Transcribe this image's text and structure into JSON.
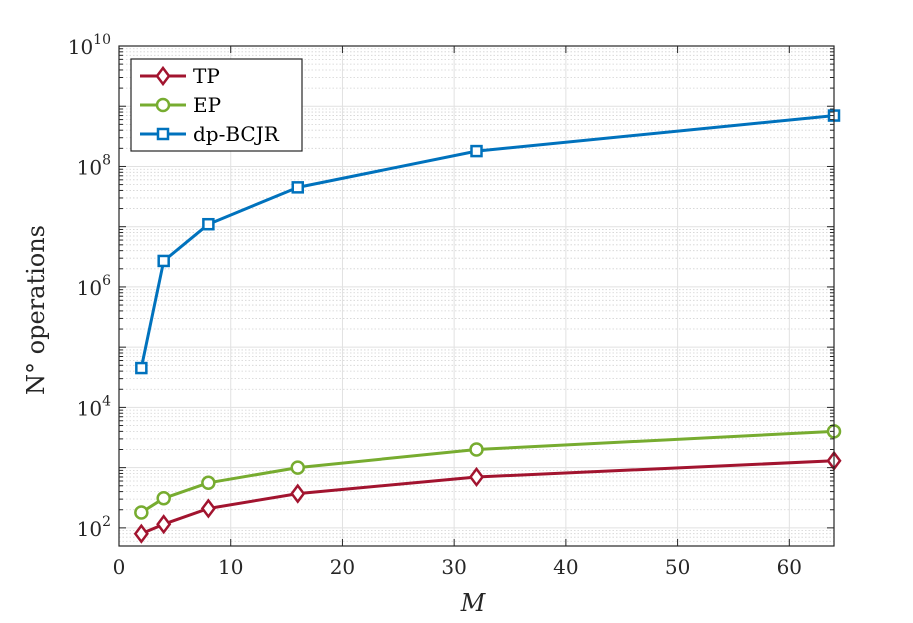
{
  "chart_data": {
    "type": "line",
    "title": "",
    "xlabel": "M",
    "ylabel": "N° operations",
    "xlim": [
      0,
      64
    ],
    "ylim": [
      50,
      10000000000
    ],
    "yscale": "log",
    "grid": true,
    "minor_grid": true,
    "legend_position": "top-left",
    "x_ticks": [
      0,
      10,
      20,
      30,
      40,
      50,
      60
    ],
    "y_ticks": [
      {
        "value": 100,
        "base": "10",
        "exp": "2"
      },
      {
        "value": 10000,
        "base": "10",
        "exp": "4"
      },
      {
        "value": 1000000,
        "base": "10",
        "exp": "6"
      },
      {
        "value": 100000000,
        "base": "10",
        "exp": "8"
      },
      {
        "value": 10000000000,
        "base": "10",
        "exp": "10"
      }
    ],
    "x": [
      2,
      4,
      8,
      16,
      32,
      64
    ],
    "series": [
      {
        "name": "TP",
        "color": "#a2142f",
        "marker": "diamond",
        "values": [
          80,
          115,
          210,
          370,
          700,
          1300
        ]
      },
      {
        "name": "EP",
        "color": "#77ac30",
        "marker": "circle",
        "values": [
          180,
          310,
          560,
          1000,
          2000,
          4000
        ]
      },
      {
        "name": "dp-BCJR",
        "color": "#0072bd",
        "marker": "square",
        "values": [
          45000,
          2700000,
          11000000,
          45000000,
          180000000,
          700000000
        ]
      }
    ]
  }
}
